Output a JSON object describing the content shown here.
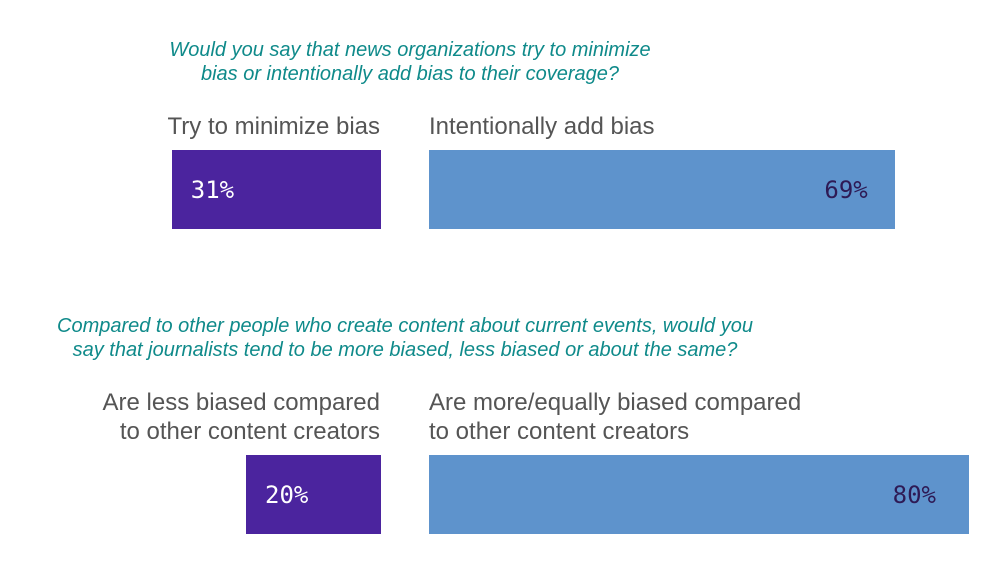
{
  "chart_data": [
    {
      "type": "bar",
      "title": "Would you say that news organizations try to minimize bias or intentionally add bias to their coverage?",
      "categories": [
        "Try to minimize bias",
        "Intentionally add bias"
      ],
      "values": [
        31,
        69
      ],
      "value_labels": [
        "31%",
        "69%"
      ],
      "colors": [
        "#4b249e",
        "#5e93cc"
      ],
      "label_colors": [
        "#ffffff",
        "#2e1a55"
      ]
    },
    {
      "type": "bar",
      "title": "Compared to other people who create content about current events, would you say that journalists tend to be more biased, less biased or about the same?",
      "categories": [
        "Are less biased compared to other content creators",
        "Are more/equally biased compared to other content creators"
      ],
      "values": [
        20,
        80
      ],
      "value_labels": [
        "20%",
        "80%"
      ],
      "colors": [
        "#4b249e",
        "#5e93cc"
      ],
      "label_colors": [
        "#ffffff",
        "#2e1a55"
      ]
    }
  ],
  "text": {
    "q1_line1": "Would you say that news organizations try to minimize",
    "q1_line2": "bias or intentionally add bias to their coverage?",
    "q1_left_label": "Try to minimize bias",
    "q1_right_label": "Intentionally add bias",
    "q2_line1": "Compared to other people who create content about current events, would you",
    "q2_line2": "say that journalists tend to be more biased, less biased or about the same?",
    "q2_left_line1": "Are less biased compared",
    "q2_left_line2": "to other content creators",
    "q2_right_line1": "Are more/equally biased compared",
    "q2_right_line2": "to other content creators"
  }
}
